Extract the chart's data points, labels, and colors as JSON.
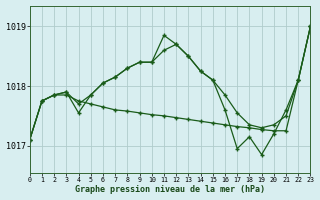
{
  "title": "Graphe pression niveau de la mer (hPa)",
  "background_color": "#d8eef0",
  "grid_color": "#b0cccc",
  "line_color": "#1a5c1a",
  "marker_color": "#1a5c1a",
  "x_ticks": [
    0,
    1,
    2,
    3,
    4,
    5,
    6,
    7,
    8,
    9,
    10,
    11,
    12,
    13,
    14,
    15,
    16,
    17,
    18,
    19,
    20,
    21,
    22,
    23
  ],
  "y_ticks": [
    1017,
    1018,
    1019
  ],
  "xlim": [
    0,
    23
  ],
  "ylim": [
    1016.55,
    1019.35
  ],
  "series": [
    [
      1017.1,
      1017.75,
      1017.85,
      1017.9,
      1017.55,
      1017.85,
      1018.05,
      1018.15,
      1018.3,
      1018.4,
      1018.4,
      1018.85,
      1018.7,
      1018.5,
      1018.25,
      1018.1,
      1017.6,
      1016.95,
      1017.15,
      1016.85,
      1017.2,
      1017.6,
      1018.1,
      1019.0
    ],
    [
      1017.1,
      1017.75,
      1017.85,
      1017.9,
      1017.7,
      1017.85,
      1018.05,
      1018.15,
      1018.3,
      1018.4,
      1018.4,
      1018.6,
      1018.7,
      1018.5,
      1018.25,
      1018.1,
      1017.85,
      1017.55,
      1017.35,
      1017.3,
      1017.35,
      1017.5,
      1018.1,
      1019.0
    ],
    [
      1017.1,
      1017.75,
      1017.85,
      1017.85,
      1017.75,
      1017.7,
      1017.65,
      1017.6,
      1017.58,
      1017.55,
      1017.52,
      1017.5,
      1017.47,
      1017.44,
      1017.41,
      1017.38,
      1017.35,
      1017.32,
      1017.3,
      1017.27,
      1017.25,
      1017.25,
      1018.1,
      1019.0
    ]
  ]
}
